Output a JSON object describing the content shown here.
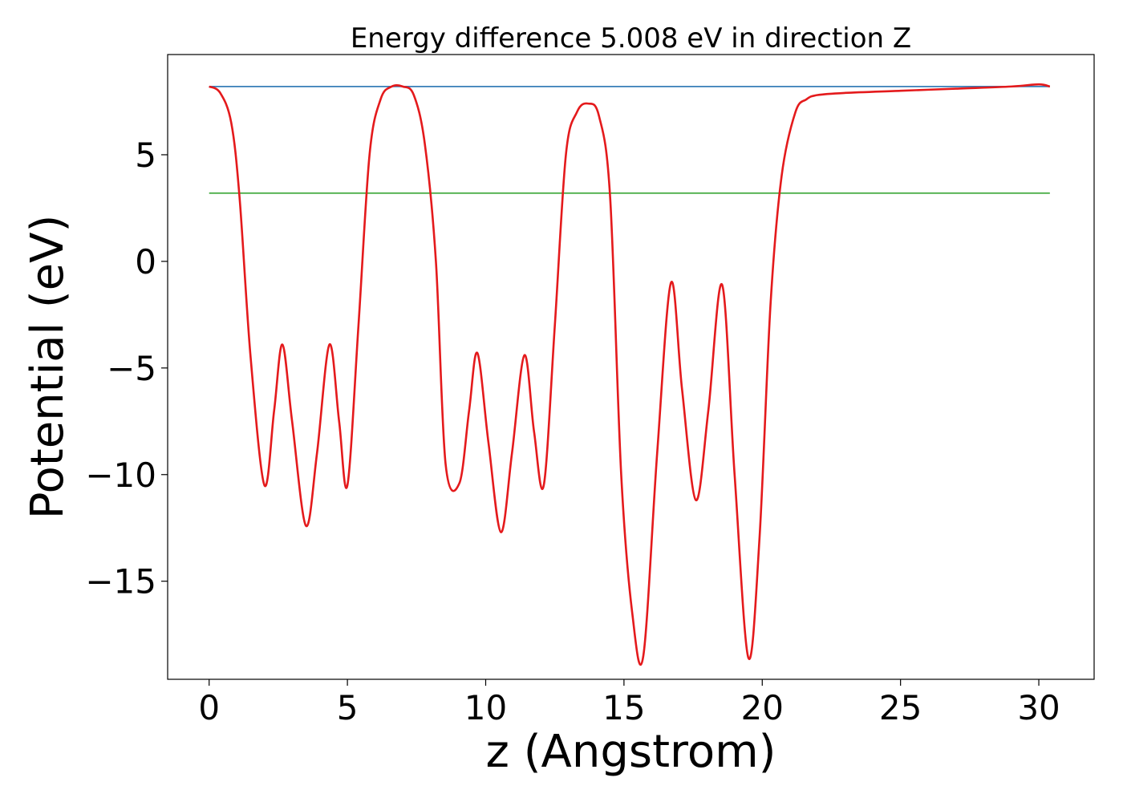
{
  "chart_data": {
    "type": "line",
    "title": "Energy difference 5.008 eV in direction Z",
    "xlabel": "z (Angstrom)",
    "ylabel": "Potential (eV)",
    "xlim": [
      -1.5,
      32
    ],
    "ylim": [
      -19.6,
      9.7
    ],
    "xticks": [
      0,
      5,
      10,
      15,
      20,
      25,
      30
    ],
    "yticks": [
      5,
      0,
      -5,
      -10,
      -15
    ],
    "xtick_labels": [
      "0",
      "5",
      "10",
      "15",
      "20",
      "25",
      "30"
    ],
    "ytick_labels": [
      "5",
      "0",
      "−5",
      "−10",
      "−15"
    ],
    "grid": false,
    "series": [
      {
        "kind": "curve",
        "color": "#e41a1c",
        "x": [
          0,
          0.4,
          0.8,
          1.1,
          1.5,
          2.0,
          2.35,
          2.65,
          3.0,
          3.5,
          3.9,
          4.35,
          4.7,
          5.0,
          5.4,
          5.8,
          6.2,
          6.6,
          7.0,
          7.4,
          7.8,
          8.2,
          8.55,
          9.05,
          9.4,
          9.7,
          10.1,
          10.55,
          10.95,
          11.4,
          11.75,
          12.1,
          12.5,
          12.9,
          13.3,
          13.7,
          14.1,
          14.5,
          14.9,
          15.3,
          15.7,
          16.2,
          16.7,
          17.1,
          17.6,
          18.05,
          18.55,
          19.0,
          19.5,
          19.9,
          20.3,
          20.7,
          21.2,
          21.6,
          22.0,
          23.0,
          25.0,
          27.0,
          29.0,
          30.0,
          30.4
        ],
        "y": [
          8.2,
          7.9,
          6.5,
          3.0,
          -4.5,
          -10.5,
          -7.0,
          -3.9,
          -7.5,
          -12.4,
          -9.0,
          -3.9,
          -7.5,
          -10.5,
          -3.0,
          5.0,
          7.6,
          8.2,
          8.2,
          7.8,
          5.5,
          0.0,
          -9.5,
          -10.4,
          -7.0,
          -4.3,
          -8.5,
          -12.7,
          -9.0,
          -4.4,
          -8.0,
          -10.5,
          -3.0,
          5.0,
          7.0,
          7.4,
          6.8,
          3.0,
          -10.0,
          -16.5,
          -18.5,
          -9.0,
          -1.0,
          -6.0,
          -11.2,
          -7.0,
          -1.1,
          -10.0,
          -18.6,
          -13.0,
          -2.0,
          4.0,
          7.0,
          7.6,
          7.8,
          7.9,
          8.0,
          8.1,
          8.2,
          8.3,
          8.2
        ]
      },
      {
        "kind": "horizontal-line",
        "color": "#377eb8",
        "x": [
          0,
          30.4
        ],
        "y": [
          8.2,
          8.2
        ]
      },
      {
        "kind": "horizontal-line",
        "color": "#4daf4a",
        "x": [
          0,
          30.4
        ],
        "y": [
          3.2,
          3.2
        ]
      }
    ]
  }
}
